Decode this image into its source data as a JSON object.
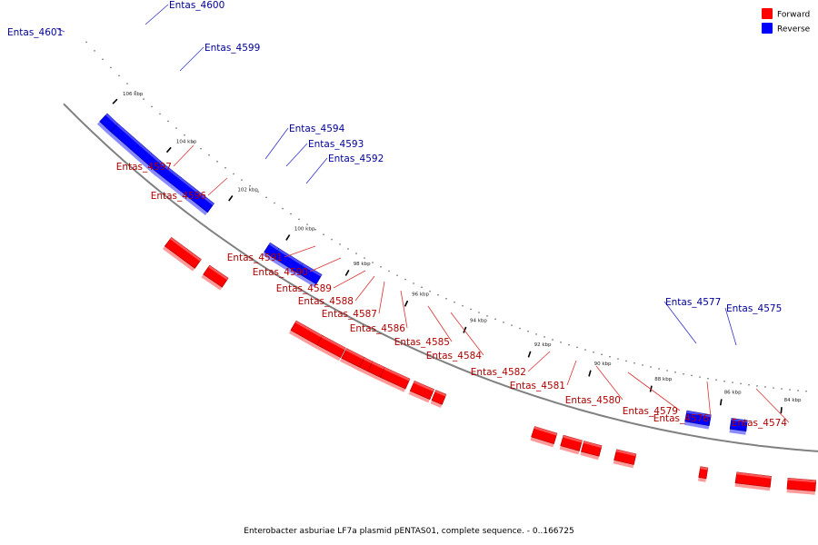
{
  "caption": "Enterobacter asburiae LF7a plasmid pENTAS01, complete sequence. - 0..166725",
  "colors": {
    "forward": "#ff0000",
    "forward_light": "#ff9a9a",
    "forward_dark": "#a80000",
    "reverse": "#0000ff",
    "reverse_light": "#8a8aff",
    "reverse_dark": "#00009a",
    "backbone": "#808080",
    "label_forward": "#b00000",
    "label_reverse": "#000099"
  },
  "legend": {
    "forward": "Forward",
    "reverse": "Reverse"
  },
  "ticks": [
    {
      "label": "106 kbp",
      "pos": 106
    },
    {
      "label": "104 kbp",
      "pos": 104
    },
    {
      "label": "102 kbp",
      "pos": 102
    },
    {
      "label": "100 kbp",
      "pos": 100
    },
    {
      "label": "98 kbp",
      "pos": 98
    },
    {
      "label": "96 kbp",
      "pos": 96
    },
    {
      "label": "94 kbp",
      "pos": 94
    },
    {
      "label": "92 kbp",
      "pos": 92
    },
    {
      "label": "90 kbp",
      "pos": 90
    },
    {
      "label": "88 kbp",
      "pos": 88
    },
    {
      "label": "86 kbp",
      "pos": 86
    },
    {
      "label": "84 kbp",
      "pos": 84
    }
  ],
  "genes": [
    {
      "name": "Entas_4601",
      "strand": "reverse"
    },
    {
      "name": "Entas_4600",
      "strand": "reverse"
    },
    {
      "name": "Entas_4599",
      "strand": "reverse"
    },
    {
      "name": "Entas_4597",
      "strand": "forward"
    },
    {
      "name": "Entas_4596",
      "strand": "forward"
    },
    {
      "name": "Entas_4594",
      "strand": "reverse"
    },
    {
      "name": "Entas_4593",
      "strand": "reverse"
    },
    {
      "name": "Entas_4592",
      "strand": "reverse"
    },
    {
      "name": "Entas_4591",
      "strand": "forward"
    },
    {
      "name": "Entas_4590",
      "strand": "forward"
    },
    {
      "name": "Entas_4589",
      "strand": "forward"
    },
    {
      "name": "Entas_4588",
      "strand": "forward"
    },
    {
      "name": "Entas_4587",
      "strand": "forward"
    },
    {
      "name": "Entas_4586",
      "strand": "forward"
    },
    {
      "name": "Entas_4585",
      "strand": "forward"
    },
    {
      "name": "Entas_4584",
      "strand": "forward"
    },
    {
      "name": "Entas_4582",
      "strand": "forward"
    },
    {
      "name": "Entas_4581",
      "strand": "forward"
    },
    {
      "name": "Entas_4580",
      "strand": "forward"
    },
    {
      "name": "Entas_4579",
      "strand": "forward"
    },
    {
      "name": "Entas_4577",
      "strand": "reverse"
    },
    {
      "name": "Entas_4576",
      "strand": "forward"
    },
    {
      "name": "Entas_4575",
      "strand": "reverse"
    },
    {
      "name": "Entas_4574",
      "strand": "forward"
    }
  ]
}
